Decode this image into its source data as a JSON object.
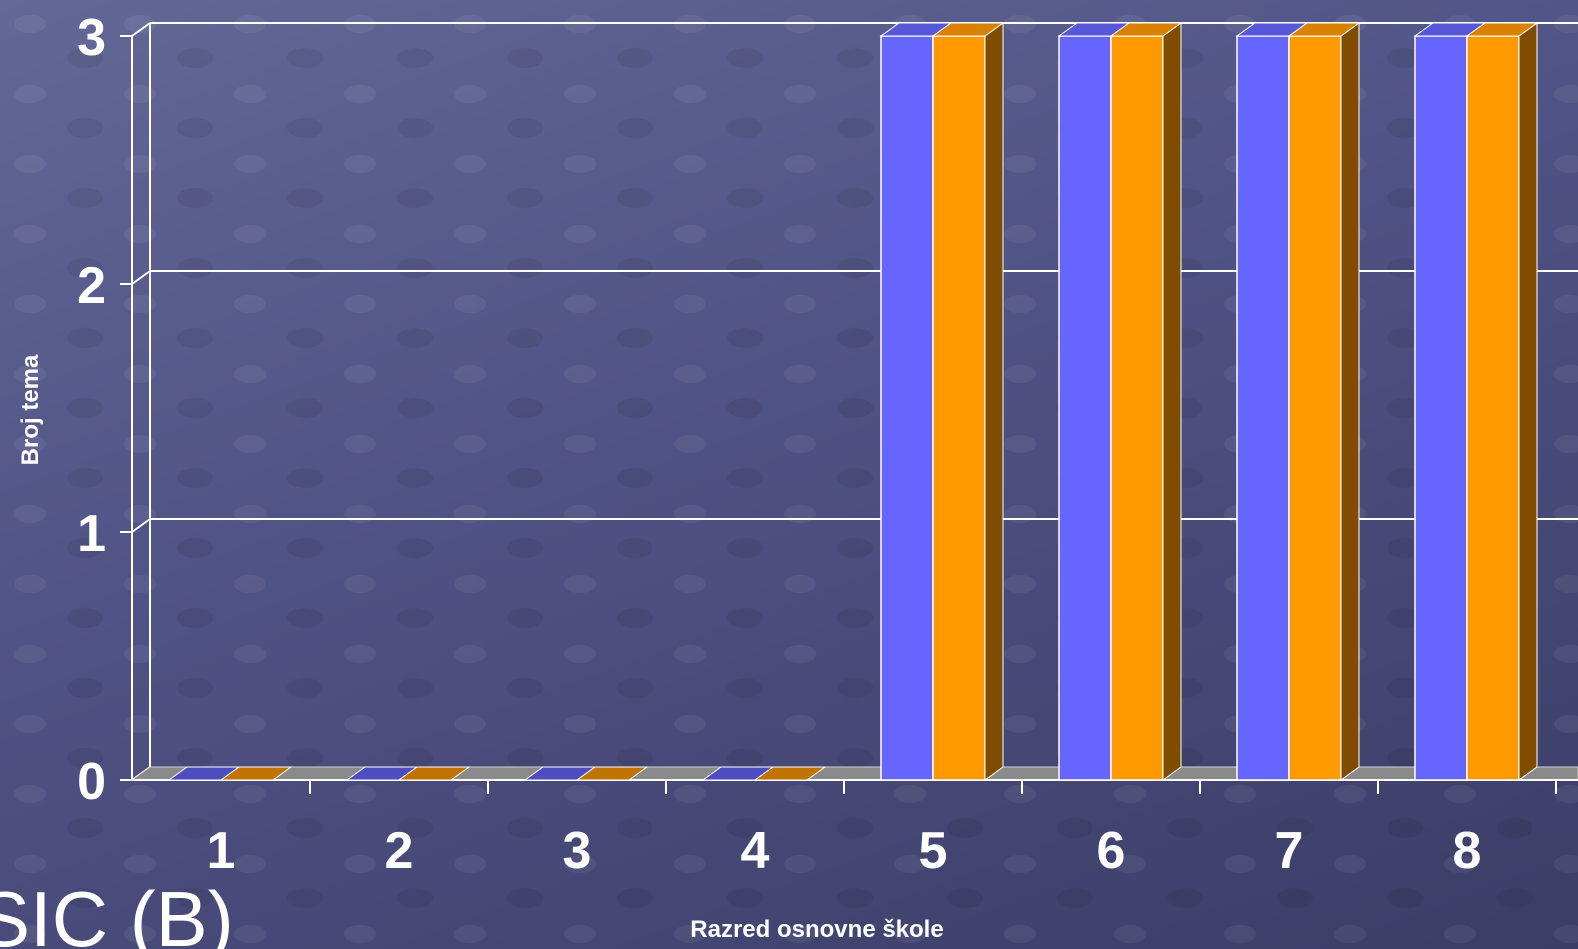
{
  "slide": {
    "partial_title": "SIC (B)"
  },
  "colors": {
    "series_a": "#6666ff",
    "series_b": "#ff9900",
    "gridline": "#ffffff",
    "floor": "#8a8a8a"
  },
  "chart_data": {
    "type": "bar",
    "style": "3d-clustered-column",
    "title": "",
    "xlabel": "Razred osnovne škole",
    "ylabel": "Broj tema",
    "categories": [
      "1",
      "2",
      "3",
      "4",
      "5",
      "6",
      "7",
      "8"
    ],
    "series": [
      {
        "values": [
          0,
          0,
          0,
          0,
          3,
          3,
          3,
          3
        ]
      },
      {
        "values": [
          0,
          0,
          0,
          0,
          3,
          3,
          3,
          3
        ]
      }
    ],
    "ylim": [
      0,
      3
    ],
    "yticks": [
      "0",
      "1",
      "2",
      "3"
    ],
    "grid": true,
    "legend": "none"
  }
}
